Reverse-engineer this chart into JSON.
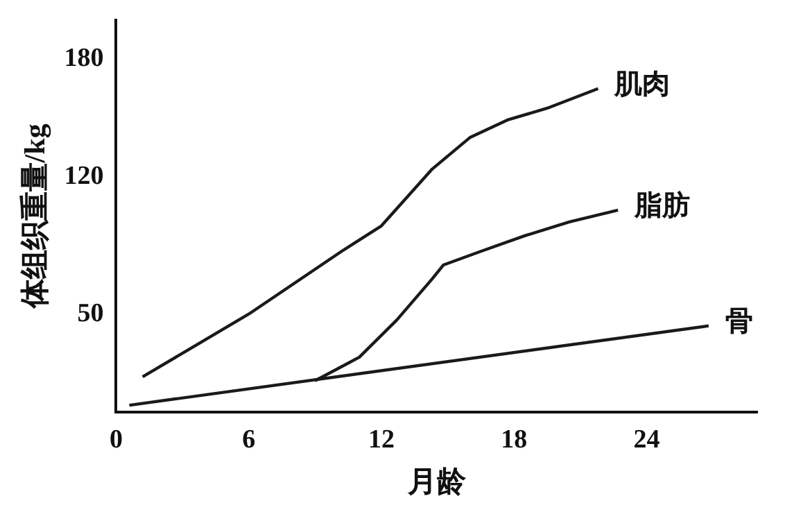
{
  "chart_data": {
    "type": "line",
    "xlabel": "月龄",
    "ylabel": "体组织重量/kg",
    "xlim": [
      0,
      29
    ],
    "ylim": [
      0,
      200
    ],
    "xticks": [
      0,
      6,
      12,
      18,
      24
    ],
    "yticks": [
      50,
      120,
      180
    ],
    "grid": false,
    "legend": false,
    "marker": "none",
    "line_style": "solid",
    "series": [
      {
        "name": "肌肉",
        "color": "#1a1a1a",
        "x": [
          1.2,
          6,
          10.2,
          12,
          14.3,
          16,
          17.7,
          19.5,
          21.8
        ],
        "values": [
          18,
          50,
          82,
          95,
          124,
          140,
          149,
          155,
          165
        ]
      },
      {
        "name": "脂肪",
        "color": "#1a1a1a",
        "x": [
          9,
          11,
          12.7,
          14.3,
          14.8,
          16.5,
          18.5,
          20.5,
          22.7
        ],
        "values": [
          16,
          28,
          47,
          68,
          75,
          82,
          90,
          97,
          103
        ]
      },
      {
        "name": "骨",
        "color": "#1a1a1a",
        "x": [
          0.6,
          26.8
        ],
        "values": [
          3.5,
          44
        ]
      }
    ]
  }
}
